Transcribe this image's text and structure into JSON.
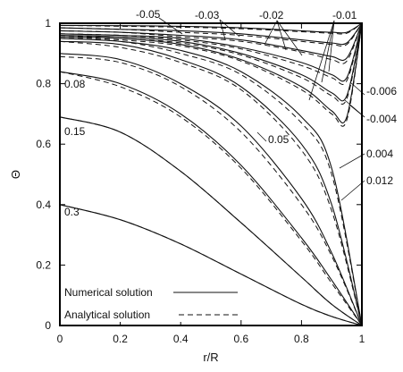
{
  "chart_data": {
    "type": "line",
    "title": "",
    "xlabel": "r/R",
    "ylabel": "Θ",
    "xlim": [
      0,
      1
    ],
    "ylim": [
      0,
      1
    ],
    "xticks": [
      "0",
      "0.2",
      "0.4",
      "0.6",
      "0.8",
      "1"
    ],
    "yticks": [
      "0",
      "0.2",
      "0.4",
      "0.6",
      "0.8",
      "1"
    ],
    "grid": false,
    "legend_position": "bottom-left",
    "legend": [
      {
        "label": "Numerical solution",
        "style": "solid"
      },
      {
        "label": "Analytical solution",
        "style": "dashed"
      }
    ],
    "curve_labels": [
      "-0.05",
      "-0.03",
      "-0.02",
      "-0.01",
      "-0.006",
      "-0.004",
      "0.004",
      "0.012",
      "0.05",
      "0.08",
      "0.15",
      "0.3"
    ],
    "series": [
      {
        "param": "0.3",
        "numerical": [
          [
            0,
            0.4
          ],
          [
            0.2,
            0.35
          ],
          [
            0.4,
            0.27
          ],
          [
            0.6,
            0.17
          ],
          [
            0.8,
            0.07
          ],
          [
            0.9,
            0.03
          ],
          [
            1,
            0
          ]
        ],
        "analytical": [
          [
            0,
            0.4
          ],
          [
            0.2,
            0.35
          ],
          [
            0.4,
            0.27
          ],
          [
            0.6,
            0.17
          ],
          [
            0.8,
            0.07
          ],
          [
            0.9,
            0.03
          ],
          [
            1,
            0
          ]
        ]
      },
      {
        "param": "0.15",
        "numerical": [
          [
            0,
            0.69
          ],
          [
            0.2,
            0.64
          ],
          [
            0.4,
            0.51
          ],
          [
            0.6,
            0.34
          ],
          [
            0.8,
            0.16
          ],
          [
            0.9,
            0.07
          ],
          [
            1,
            0
          ]
        ],
        "analytical": [
          [
            0,
            0.69
          ],
          [
            0.2,
            0.64
          ],
          [
            0.4,
            0.51
          ],
          [
            0.6,
            0.34
          ],
          [
            0.8,
            0.16
          ],
          [
            0.9,
            0.07
          ],
          [
            1,
            0
          ]
        ]
      },
      {
        "param": "0.08",
        "numerical": [
          [
            0,
            0.84
          ],
          [
            0.2,
            0.8
          ],
          [
            0.4,
            0.7
          ],
          [
            0.6,
            0.53
          ],
          [
            0.8,
            0.29
          ],
          [
            0.9,
            0.15
          ],
          [
            1,
            0
          ]
        ],
        "analytical": [
          [
            0,
            0.84
          ],
          [
            0.2,
            0.79
          ],
          [
            0.4,
            0.69
          ],
          [
            0.6,
            0.52
          ],
          [
            0.8,
            0.28
          ],
          [
            0.9,
            0.14
          ],
          [
            1,
            0
          ]
        ]
      },
      {
        "param": "0.05",
        "numerical": [
          [
            0,
            0.9
          ],
          [
            0.2,
            0.88
          ],
          [
            0.4,
            0.8
          ],
          [
            0.6,
            0.66
          ],
          [
            0.8,
            0.42
          ],
          [
            0.9,
            0.24
          ],
          [
            1,
            0
          ]
        ],
        "analytical": [
          [
            0,
            0.89
          ],
          [
            0.2,
            0.87
          ],
          [
            0.4,
            0.79
          ],
          [
            0.6,
            0.64
          ],
          [
            0.8,
            0.4
          ],
          [
            0.9,
            0.23
          ],
          [
            1,
            0
          ]
        ]
      },
      {
        "param": "0.012",
        "numerical": [
          [
            0,
            0.94
          ],
          [
            0.2,
            0.93
          ],
          [
            0.4,
            0.88
          ],
          [
            0.6,
            0.79
          ],
          [
            0.8,
            0.6
          ],
          [
            0.9,
            0.4
          ],
          [
            1,
            0
          ]
        ],
        "analytical": [
          [
            0,
            0.94
          ],
          [
            0.2,
            0.92
          ],
          [
            0.4,
            0.87
          ],
          [
            0.6,
            0.78
          ],
          [
            0.8,
            0.58
          ],
          [
            0.9,
            0.38
          ],
          [
            1,
            0
          ]
        ]
      },
      {
        "param": "0.004",
        "numerical": [
          [
            0,
            0.95
          ],
          [
            0.2,
            0.94
          ],
          [
            0.4,
            0.91
          ],
          [
            0.6,
            0.84
          ],
          [
            0.8,
            0.69
          ],
          [
            0.9,
            0.52
          ],
          [
            1,
            0
          ]
        ],
        "analytical": [
          [
            0,
            0.95
          ],
          [
            0.2,
            0.94
          ],
          [
            0.4,
            0.9
          ],
          [
            0.6,
            0.83
          ],
          [
            0.8,
            0.67
          ],
          [
            0.9,
            0.5
          ],
          [
            1,
            0
          ]
        ]
      },
      {
        "param": "-0.004",
        "numerical": [
          [
            0,
            0.955
          ],
          [
            0.2,
            0.95
          ],
          [
            0.4,
            0.93
          ],
          [
            0.6,
            0.88
          ],
          [
            0.8,
            0.79
          ],
          [
            0.9,
            0.71
          ],
          [
            0.95,
            0.69
          ],
          [
            1,
            1
          ]
        ],
        "analytical": [
          [
            0,
            0.955
          ],
          [
            0.2,
            0.945
          ],
          [
            0.4,
            0.925
          ],
          [
            0.6,
            0.875
          ],
          [
            0.8,
            0.78
          ],
          [
            0.9,
            0.7
          ],
          [
            0.95,
            0.68
          ],
          [
            1,
            1
          ]
        ]
      },
      {
        "param": "-0.006",
        "numerical": [
          [
            0,
            0.96
          ],
          [
            0.2,
            0.955
          ],
          [
            0.4,
            0.94
          ],
          [
            0.6,
            0.9
          ],
          [
            0.8,
            0.83
          ],
          [
            0.9,
            0.77
          ],
          [
            0.95,
            0.76
          ],
          [
            1,
            1
          ]
        ],
        "analytical": [
          [
            0,
            0.96
          ],
          [
            0.2,
            0.95
          ],
          [
            0.4,
            0.935
          ],
          [
            0.6,
            0.895
          ],
          [
            0.8,
            0.82
          ],
          [
            0.9,
            0.76
          ],
          [
            0.95,
            0.75
          ],
          [
            1,
            1
          ]
        ]
      },
      {
        "param": "-0.01",
        "numerical": [
          [
            0,
            0.965
          ],
          [
            0.2,
            0.96
          ],
          [
            0.4,
            0.95
          ],
          [
            0.6,
            0.92
          ],
          [
            0.8,
            0.87
          ],
          [
            0.9,
            0.83
          ],
          [
            0.95,
            0.82
          ],
          [
            1,
            1
          ]
        ],
        "analytical": [
          [
            0,
            0.965
          ],
          [
            0.2,
            0.96
          ],
          [
            0.4,
            0.945
          ],
          [
            0.6,
            0.915
          ],
          [
            0.8,
            0.86
          ],
          [
            0.9,
            0.82
          ],
          [
            0.95,
            0.81
          ],
          [
            1,
            1
          ]
        ]
      },
      {
        "param": "-0.02",
        "numerical": [
          [
            0,
            0.975
          ],
          [
            0.2,
            0.97
          ],
          [
            0.4,
            0.96
          ],
          [
            0.6,
            0.945
          ],
          [
            0.8,
            0.91
          ],
          [
            0.9,
            0.89
          ],
          [
            0.95,
            0.885
          ],
          [
            1,
            1
          ]
        ],
        "analytical": [
          [
            0,
            0.975
          ],
          [
            0.2,
            0.97
          ],
          [
            0.4,
            0.955
          ],
          [
            0.6,
            0.94
          ],
          [
            0.8,
            0.905
          ],
          [
            0.9,
            0.88
          ],
          [
            0.95,
            0.875
          ],
          [
            1,
            1
          ]
        ]
      },
      {
        "param": "-0.03",
        "numerical": [
          [
            0,
            0.985
          ],
          [
            0.2,
            0.98
          ],
          [
            0.4,
            0.975
          ],
          [
            0.6,
            0.965
          ],
          [
            0.8,
            0.945
          ],
          [
            0.9,
            0.935
          ],
          [
            0.95,
            0.935
          ],
          [
            1,
            1
          ]
        ],
        "analytical": [
          [
            0,
            0.985
          ],
          [
            0.2,
            0.98
          ],
          [
            0.4,
            0.97
          ],
          [
            0.6,
            0.96
          ],
          [
            0.8,
            0.94
          ],
          [
            0.9,
            0.93
          ],
          [
            0.95,
            0.93
          ],
          [
            1,
            1
          ]
        ]
      },
      {
        "param": "-0.05",
        "numerical": [
          [
            0,
            0.993
          ],
          [
            0.2,
            0.992
          ],
          [
            0.4,
            0.99
          ],
          [
            0.6,
            0.985
          ],
          [
            0.8,
            0.975
          ],
          [
            0.9,
            0.97
          ],
          [
            0.95,
            0.97
          ],
          [
            1,
            1
          ]
        ],
        "analytical": [
          [
            0,
            0.993
          ],
          [
            0.2,
            0.99
          ],
          [
            0.4,
            0.987
          ],
          [
            0.6,
            0.982
          ],
          [
            0.8,
            0.972
          ],
          [
            0.9,
            0.967
          ],
          [
            0.95,
            0.967
          ],
          [
            1,
            1
          ]
        ]
      }
    ]
  }
}
